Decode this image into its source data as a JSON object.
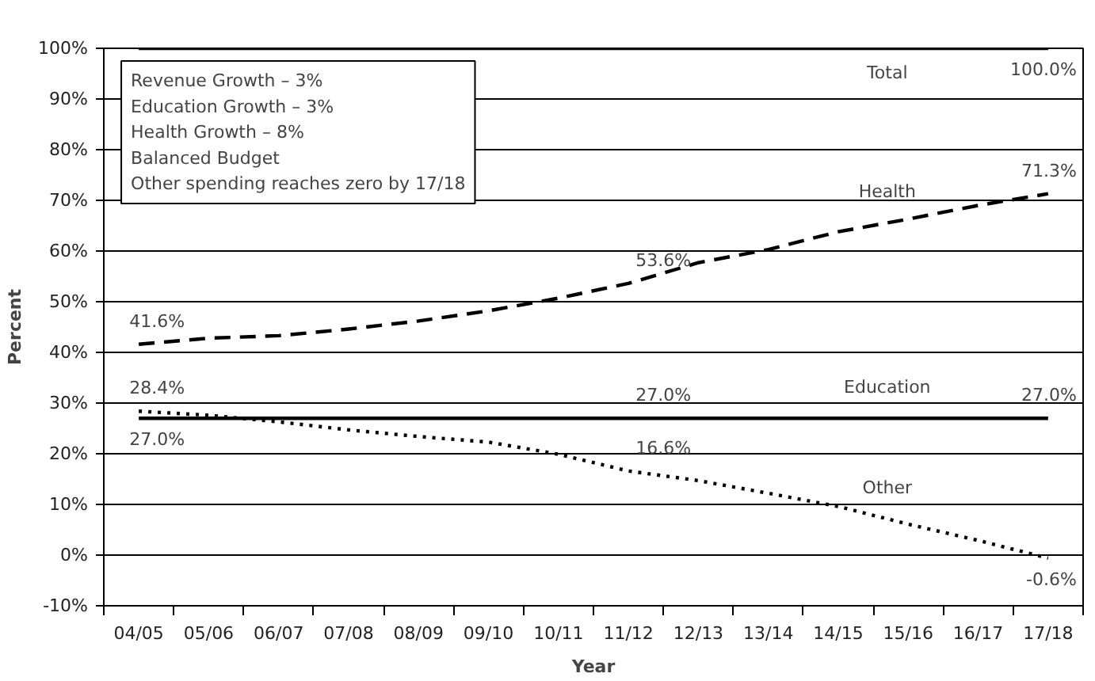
{
  "chart_data": {
    "type": "line",
    "xlabel": "Year",
    "ylabel": "Percent",
    "categories": [
      "04/05",
      "05/06",
      "06/07",
      "07/08",
      "08/09",
      "09/10",
      "10/11",
      "11/12",
      "12/13",
      "13/14",
      "14/15",
      "15/16",
      "16/17",
      "17/18"
    ],
    "series": [
      {
        "name": "Total",
        "color": "#000000",
        "line_style": "solid",
        "values": [
          100,
          100,
          100,
          100,
          100,
          100,
          100,
          100,
          100,
          100,
          100,
          100,
          100,
          100
        ],
        "value_labels": [
          null,
          null,
          null,
          null,
          null,
          null,
          null,
          null,
          null,
          null,
          null,
          null,
          null,
          "100.0%"
        ]
      },
      {
        "name": "Health",
        "color": "#000000",
        "line_style": "dashed",
        "values": [
          41.6,
          42.8,
          43.3,
          44.6,
          46.2,
          48.2,
          50.7,
          53.6,
          57.7,
          60.3,
          63.8,
          66.3,
          69.0,
          71.3
        ],
        "value_labels": [
          "41.6%",
          null,
          null,
          null,
          null,
          null,
          null,
          "53.6%",
          null,
          null,
          null,
          null,
          null,
          "71.3%"
        ]
      },
      {
        "name": "Education",
        "color": "#000000",
        "line_style": "solid",
        "values": [
          27.0,
          27.0,
          27.0,
          27.0,
          27.0,
          27.0,
          27.0,
          27.0,
          27.0,
          27.0,
          27.0,
          27.0,
          27.0,
          27.0
        ],
        "value_labels": [
          "27.0%",
          null,
          null,
          null,
          null,
          null,
          null,
          "27.0%",
          null,
          null,
          null,
          null,
          null,
          "27.0%"
        ]
      },
      {
        "name": "Other",
        "color": "#000000",
        "line_style": "dotted",
        "values": [
          28.4,
          27.6,
          26.3,
          24.7,
          23.4,
          22.3,
          19.9,
          16.6,
          14.7,
          12.2,
          9.6,
          6.1,
          2.9,
          -0.6
        ],
        "value_labels": [
          "28.4%",
          null,
          null,
          null,
          null,
          null,
          null,
          "16.6%",
          null,
          null,
          null,
          null,
          null,
          "-0.6%"
        ]
      }
    ],
    "ylim": [
      -10,
      100
    ],
    "yticks": [
      {
        "value": -10,
        "label": "-10%"
      },
      {
        "value": 0,
        "label": "0%"
      },
      {
        "value": 10,
        "label": "10%"
      },
      {
        "value": 20,
        "label": "20%"
      },
      {
        "value": 30,
        "label": "30%"
      },
      {
        "value": 40,
        "label": "40%"
      },
      {
        "value": 50,
        "label": "50%"
      },
      {
        "value": 60,
        "label": "60%"
      },
      {
        "value": 70,
        "label": "70%"
      },
      {
        "value": 80,
        "label": "80%"
      },
      {
        "value": 90,
        "label": "90%"
      },
      {
        "value": 100,
        "label": "100%"
      }
    ],
    "grid": "y",
    "legend": false,
    "marker": "none",
    "annotations": [
      "Revenue Growth – 3%",
      "Education Growth – 3%",
      "Health Growth – 8%",
      "Balanced Budget",
      "Other spending reaches zero by 17/18"
    ]
  }
}
